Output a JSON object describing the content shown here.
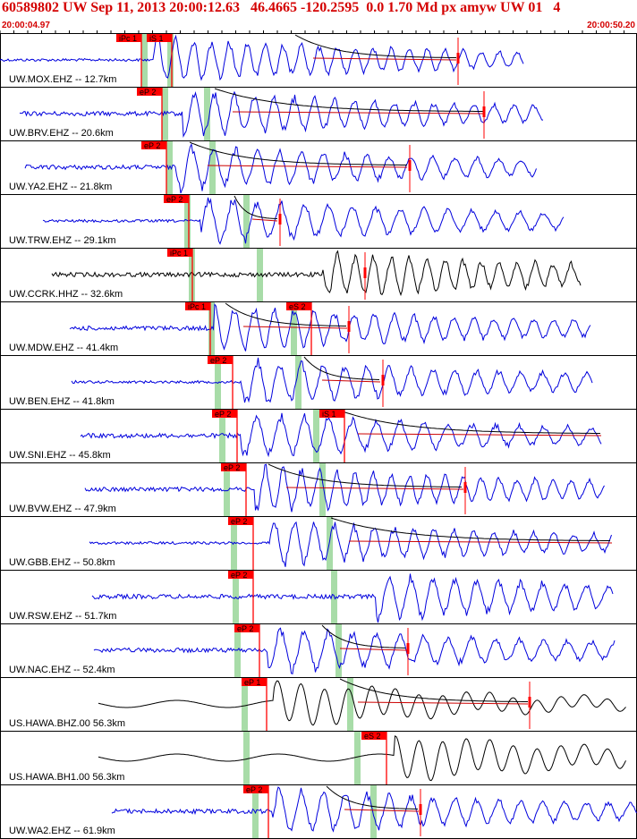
{
  "header": {
    "title": "60589802 UW Sep 11, 2013 20:00:12.63   46.4665 -120.2595  0.0 1.70 Md px amyw UW 01   4",
    "start_time": "20:00:04.97",
    "end_time": "20:00:50.20"
  },
  "colors": {
    "header": "#d40000",
    "trace_blue": "#0000dd",
    "trace_black": "#000000",
    "pick_red": "#ff0000",
    "duration_red": "#cc0000",
    "theoretical_green": "#a8dca8"
  },
  "traces": [
    {
      "label": "UW.MOX.EHZ -- 12.7km",
      "color": "blue",
      "picks": [
        {
          "text": "iPc 1",
          "phase": "P"
        },
        {
          "text": "iS 1",
          "phase": "S"
        }
      ]
    },
    {
      "label": "UW.BRV.EHZ -- 20.6km",
      "color": "blue",
      "picks": [
        {
          "text": "eP 2",
          "phase": "P"
        }
      ]
    },
    {
      "label": "UW.YA2.EHZ -- 21.8km",
      "color": "blue",
      "picks": [
        {
          "text": "eP 2",
          "phase": "P"
        }
      ]
    },
    {
      "label": "UW.TRW.EHZ -- 29.1km",
      "color": "blue",
      "picks": [
        {
          "text": "eP 2",
          "phase": "P"
        }
      ]
    },
    {
      "label": "UW.CCRK.HHZ -- 32.6km",
      "color": "black",
      "picks": [
        {
          "text": "iPc 1",
          "phase": "P"
        }
      ]
    },
    {
      "label": "UW.MDW.EHZ -- 41.4km",
      "color": "blue",
      "picks": [
        {
          "text": "iPc 1",
          "phase": "P"
        },
        {
          "text": "eS 2",
          "phase": "S"
        }
      ]
    },
    {
      "label": "UW.BEN.EHZ -- 41.8km",
      "color": "blue",
      "picks": [
        {
          "text": "eP 2",
          "phase": "P"
        }
      ]
    },
    {
      "label": "UW.SNI.EHZ -- 45.8km",
      "color": "blue",
      "picks": [
        {
          "text": "eP 2",
          "phase": "P"
        },
        {
          "text": "iS 1",
          "phase": "S"
        }
      ]
    },
    {
      "label": "UW.BVW.EHZ -- 47.9km",
      "color": "blue",
      "picks": [
        {
          "text": "eP 2",
          "phase": "P"
        }
      ]
    },
    {
      "label": "UW.GBB.EHZ -- 50.8km",
      "color": "blue",
      "picks": [
        {
          "text": "eP 2",
          "phase": "P"
        }
      ]
    },
    {
      "label": "UW.RSW.EHZ -- 51.7km",
      "color": "blue",
      "picks": [
        {
          "text": "eP 2",
          "phase": "P"
        }
      ]
    },
    {
      "label": "UW.NAC.EHZ -- 52.4km",
      "color": "blue",
      "picks": [
        {
          "text": "eP 2",
          "phase": "P"
        }
      ]
    },
    {
      "label": "US.HAWA.BHZ.00 56.3km",
      "color": "black",
      "picks": [
        {
          "text": "eP 1",
          "phase": "P"
        }
      ]
    },
    {
      "label": "US.HAWA.BH1.00 56.3km",
      "color": "black",
      "picks": [
        {
          "text": "eS 2",
          "phase": "S"
        }
      ]
    },
    {
      "label": "UW.WA2.EHZ -- 61.9km",
      "color": "blue",
      "picks": [
        {
          "text": "eP 2",
          "phase": "P"
        }
      ]
    }
  ]
}
